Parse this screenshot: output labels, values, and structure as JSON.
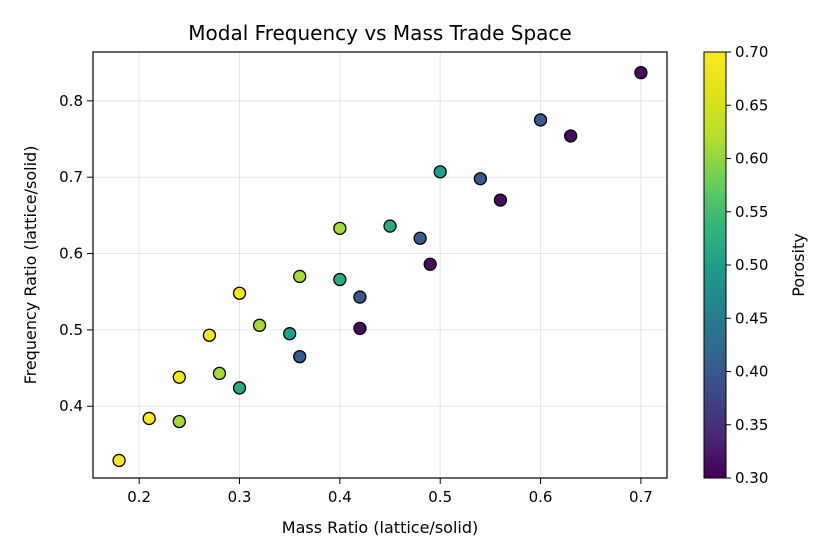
{
  "chart_data": {
    "type": "scatter",
    "title": "Modal Frequency vs Mass Trade Space",
    "xlabel": "Mass Ratio (lattice/solid)",
    "ylabel": "Frequency Ratio (lattice/solid)",
    "xlim": [
      0.154,
      0.726
    ],
    "ylim": [
      0.306,
      0.864
    ],
    "xticks": [
      0.2,
      0.3,
      0.4,
      0.5,
      0.6,
      0.7
    ],
    "yticks": [
      0.4,
      0.5,
      0.6,
      0.7,
      0.8
    ],
    "x_tick_labels": [
      "0.2",
      "0.3",
      "0.4",
      "0.5",
      "0.6",
      "0.7"
    ],
    "y_tick_labels": [
      "0.4",
      "0.5",
      "0.6",
      "0.7",
      "0.8"
    ],
    "grid": true,
    "colorbar": {
      "label": "Porosity",
      "colormap": "viridis",
      "range": [
        0.3,
        0.7
      ],
      "ticks": [
        0.3,
        0.35,
        0.4,
        0.45,
        0.5,
        0.55,
        0.6,
        0.65,
        0.7
      ],
      "tick_labels": [
        "0.30",
        "0.35",
        "0.40",
        "0.45",
        "0.50",
        "0.55",
        "0.60",
        "0.65",
        "0.70"
      ]
    },
    "points": [
      {
        "x": 0.18,
        "y": 0.329,
        "porosity": 0.7
      },
      {
        "x": 0.21,
        "y": 0.384,
        "porosity": 0.7
      },
      {
        "x": 0.24,
        "y": 0.438,
        "porosity": 0.69
      },
      {
        "x": 0.24,
        "y": 0.38,
        "porosity": 0.61
      },
      {
        "x": 0.27,
        "y": 0.493,
        "porosity": 0.69
      },
      {
        "x": 0.28,
        "y": 0.443,
        "porosity": 0.61
      },
      {
        "x": 0.3,
        "y": 0.548,
        "porosity": 0.69
      },
      {
        "x": 0.3,
        "y": 0.424,
        "porosity": 0.52
      },
      {
        "x": 0.32,
        "y": 0.506,
        "porosity": 0.61
      },
      {
        "x": 0.35,
        "y": 0.495,
        "porosity": 0.5
      },
      {
        "x": 0.36,
        "y": 0.57,
        "porosity": 0.61
      },
      {
        "x": 0.36,
        "y": 0.465,
        "porosity": 0.4
      },
      {
        "x": 0.4,
        "y": 0.633,
        "porosity": 0.61
      },
      {
        "x": 0.4,
        "y": 0.566,
        "porosity": 0.52
      },
      {
        "x": 0.42,
        "y": 0.543,
        "porosity": 0.4
      },
      {
        "x": 0.42,
        "y": 0.502,
        "porosity": 0.31
      },
      {
        "x": 0.45,
        "y": 0.636,
        "porosity": 0.52
      },
      {
        "x": 0.48,
        "y": 0.62,
        "porosity": 0.4
      },
      {
        "x": 0.49,
        "y": 0.586,
        "porosity": 0.31
      },
      {
        "x": 0.5,
        "y": 0.707,
        "porosity": 0.5
      },
      {
        "x": 0.54,
        "y": 0.698,
        "porosity": 0.4
      },
      {
        "x": 0.56,
        "y": 0.67,
        "porosity": 0.31
      },
      {
        "x": 0.6,
        "y": 0.775,
        "porosity": 0.4
      },
      {
        "x": 0.63,
        "y": 0.754,
        "porosity": 0.31
      },
      {
        "x": 0.7,
        "y": 0.837,
        "porosity": 0.31
      }
    ]
  }
}
